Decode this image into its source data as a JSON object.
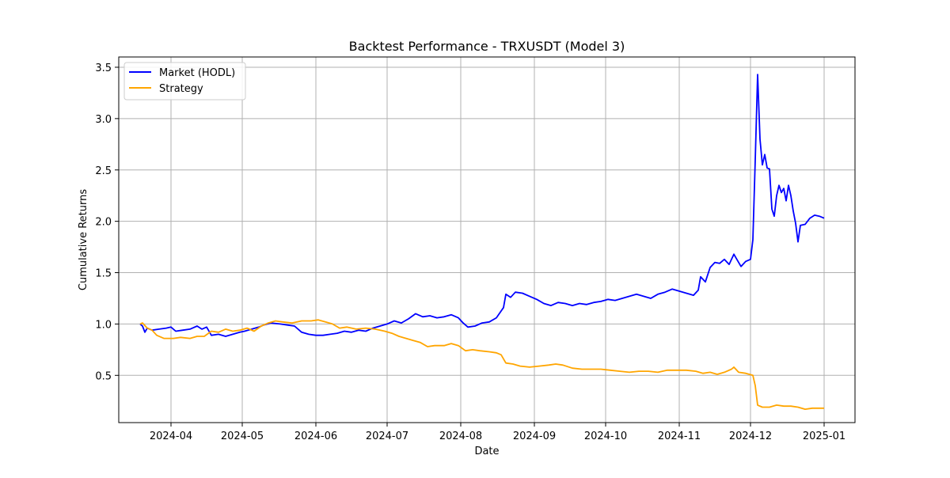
{
  "chart_data": {
    "type": "line",
    "title": "Backtest Performance - TRXUSDT (Model 3)",
    "xlabel": "Date",
    "ylabel": "Cumulative Returns",
    "xlim": [
      "2024-03-10",
      "2025-01-14"
    ],
    "ylim": [
      0.04,
      3.6
    ],
    "grid": true,
    "legend_position": "top-left",
    "x_ticks": [
      "2024-04",
      "2024-05",
      "2024-06",
      "2024-07",
      "2024-08",
      "2024-09",
      "2024-10",
      "2024-11",
      "2024-12",
      "2025-01"
    ],
    "y_ticks": [
      "0.5",
      "1.0",
      "1.5",
      "2.0",
      "2.5",
      "3.0",
      "3.5"
    ],
    "series": [
      {
        "name": "Market (HODL)",
        "color": "#0000ff",
        "points": [
          [
            "2024-03-19",
            1.0
          ],
          [
            "2024-03-20",
            0.98
          ],
          [
            "2024-03-21",
            0.92
          ],
          [
            "2024-03-22",
            0.96
          ],
          [
            "2024-03-24",
            0.94
          ],
          [
            "2024-03-27",
            0.95
          ],
          [
            "2024-03-30",
            0.96
          ],
          [
            "2024-04-01",
            0.97
          ],
          [
            "2024-04-03",
            0.93
          ],
          [
            "2024-04-06",
            0.94
          ],
          [
            "2024-04-09",
            0.95
          ],
          [
            "2024-04-12",
            0.98
          ],
          [
            "2024-04-14",
            0.95
          ],
          [
            "2024-04-16",
            0.97
          ],
          [
            "2024-04-18",
            0.89
          ],
          [
            "2024-04-21",
            0.9
          ],
          [
            "2024-04-24",
            0.88
          ],
          [
            "2024-04-27",
            0.9
          ],
          [
            "2024-04-30",
            0.92
          ],
          [
            "2024-05-02",
            0.93
          ],
          [
            "2024-05-05",
            0.95
          ],
          [
            "2024-05-08",
            0.97
          ],
          [
            "2024-05-10",
            0.99
          ],
          [
            "2024-05-13",
            1.01
          ],
          [
            "2024-05-17",
            1.0
          ],
          [
            "2024-05-20",
            0.99
          ],
          [
            "2024-05-23",
            0.98
          ],
          [
            "2024-05-26",
            0.92
          ],
          [
            "2024-05-29",
            0.9
          ],
          [
            "2024-06-01",
            0.89
          ],
          [
            "2024-06-04",
            0.89
          ],
          [
            "2024-06-07",
            0.9
          ],
          [
            "2024-06-10",
            0.91
          ],
          [
            "2024-06-13",
            0.93
          ],
          [
            "2024-06-16",
            0.92
          ],
          [
            "2024-06-19",
            0.94
          ],
          [
            "2024-06-22",
            0.93
          ],
          [
            "2024-06-25",
            0.96
          ],
          [
            "2024-06-28",
            0.98
          ],
          [
            "2024-07-01",
            1.0
          ],
          [
            "2024-07-04",
            1.03
          ],
          [
            "2024-07-07",
            1.01
          ],
          [
            "2024-07-10",
            1.05
          ],
          [
            "2024-07-13",
            1.1
          ],
          [
            "2024-07-16",
            1.07
          ],
          [
            "2024-07-19",
            1.08
          ],
          [
            "2024-07-22",
            1.06
          ],
          [
            "2024-07-25",
            1.07
          ],
          [
            "2024-07-28",
            1.09
          ],
          [
            "2024-07-31",
            1.06
          ],
          [
            "2024-08-02",
            1.01
          ],
          [
            "2024-08-04",
            0.97
          ],
          [
            "2024-08-07",
            0.98
          ],
          [
            "2024-08-10",
            1.01
          ],
          [
            "2024-08-13",
            1.02
          ],
          [
            "2024-08-16",
            1.06
          ],
          [
            "2024-08-19",
            1.16
          ],
          [
            "2024-08-20",
            1.29
          ],
          [
            "2024-08-22",
            1.26
          ],
          [
            "2024-08-24",
            1.31
          ],
          [
            "2024-08-27",
            1.3
          ],
          [
            "2024-08-30",
            1.27
          ],
          [
            "2024-09-02",
            1.24
          ],
          [
            "2024-09-05",
            1.2
          ],
          [
            "2024-09-08",
            1.18
          ],
          [
            "2024-09-11",
            1.21
          ],
          [
            "2024-09-14",
            1.2
          ],
          [
            "2024-09-17",
            1.18
          ],
          [
            "2024-09-20",
            1.2
          ],
          [
            "2024-09-23",
            1.19
          ],
          [
            "2024-09-26",
            1.21
          ],
          [
            "2024-09-29",
            1.22
          ],
          [
            "2024-10-02",
            1.24
          ],
          [
            "2024-10-05",
            1.23
          ],
          [
            "2024-10-08",
            1.25
          ],
          [
            "2024-10-11",
            1.27
          ],
          [
            "2024-10-14",
            1.29
          ],
          [
            "2024-10-17",
            1.27
          ],
          [
            "2024-10-20",
            1.25
          ],
          [
            "2024-10-23",
            1.29
          ],
          [
            "2024-10-26",
            1.31
          ],
          [
            "2024-10-29",
            1.34
          ],
          [
            "2024-11-01",
            1.32
          ],
          [
            "2024-11-04",
            1.3
          ],
          [
            "2024-11-07",
            1.28
          ],
          [
            "2024-11-09",
            1.33
          ],
          [
            "2024-11-10",
            1.46
          ],
          [
            "2024-11-12",
            1.41
          ],
          [
            "2024-11-14",
            1.55
          ],
          [
            "2024-11-16",
            1.6
          ],
          [
            "2024-11-18",
            1.59
          ],
          [
            "2024-11-20",
            1.63
          ],
          [
            "2024-11-22",
            1.58
          ],
          [
            "2024-11-24",
            1.68
          ],
          [
            "2024-11-25",
            1.64
          ],
          [
            "2024-11-27",
            1.56
          ],
          [
            "2024-11-29",
            1.61
          ],
          [
            "2024-12-01",
            1.63
          ],
          [
            "2024-12-02",
            1.82
          ],
          [
            "2024-12-03",
            2.6
          ],
          [
            "2024-12-04",
            3.43
          ],
          [
            "2024-12-05",
            2.8
          ],
          [
            "2024-12-06",
            2.55
          ],
          [
            "2024-12-07",
            2.65
          ],
          [
            "2024-12-08",
            2.52
          ],
          [
            "2024-12-09",
            2.51
          ],
          [
            "2024-12-10",
            2.12
          ],
          [
            "2024-12-11",
            2.05
          ],
          [
            "2024-12-12",
            2.25
          ],
          [
            "2024-12-13",
            2.35
          ],
          [
            "2024-12-14",
            2.28
          ],
          [
            "2024-12-15",
            2.32
          ],
          [
            "2024-12-16",
            2.2
          ],
          [
            "2024-12-17",
            2.35
          ],
          [
            "2024-12-18",
            2.25
          ],
          [
            "2024-12-19",
            2.1
          ],
          [
            "2024-12-20",
            1.98
          ],
          [
            "2024-12-21",
            1.8
          ],
          [
            "2024-12-22",
            1.96
          ],
          [
            "2024-12-24",
            1.97
          ],
          [
            "2024-12-26",
            2.03
          ],
          [
            "2024-12-28",
            2.06
          ],
          [
            "2024-12-30",
            2.05
          ],
          [
            "2025-01-01",
            2.03
          ]
        ]
      },
      {
        "name": "Strategy",
        "color": "#ffa500",
        "points": [
          [
            "2024-03-19",
            1.0
          ],
          [
            "2024-03-20",
            1.01
          ],
          [
            "2024-03-22",
            0.96
          ],
          [
            "2024-03-24",
            0.94
          ],
          [
            "2024-03-26",
            0.89
          ],
          [
            "2024-03-29",
            0.86
          ],
          [
            "2024-04-02",
            0.86
          ],
          [
            "2024-04-05",
            0.87
          ],
          [
            "2024-04-09",
            0.86
          ],
          [
            "2024-04-12",
            0.88
          ],
          [
            "2024-04-15",
            0.88
          ],
          [
            "2024-04-18",
            0.93
          ],
          [
            "2024-04-21",
            0.92
          ],
          [
            "2024-04-24",
            0.95
          ],
          [
            "2024-04-27",
            0.93
          ],
          [
            "2024-04-30",
            0.94
          ],
          [
            "2024-05-03",
            0.96
          ],
          [
            "2024-05-06",
            0.93
          ],
          [
            "2024-05-09",
            0.98
          ],
          [
            "2024-05-12",
            1.01
          ],
          [
            "2024-05-15",
            1.03
          ],
          [
            "2024-05-18",
            1.02
          ],
          [
            "2024-05-22",
            1.01
          ],
          [
            "2024-05-26",
            1.03
          ],
          [
            "2024-05-30",
            1.03
          ],
          [
            "2024-06-02",
            1.04
          ],
          [
            "2024-06-05",
            1.02
          ],
          [
            "2024-06-08",
            1.0
          ],
          [
            "2024-06-11",
            0.96
          ],
          [
            "2024-06-14",
            0.97
          ],
          [
            "2024-06-18",
            0.95
          ],
          [
            "2024-06-22",
            0.96
          ],
          [
            "2024-06-26",
            0.95
          ],
          [
            "2024-06-30",
            0.93
          ],
          [
            "2024-07-03",
            0.91
          ],
          [
            "2024-07-06",
            0.88
          ],
          [
            "2024-07-09",
            0.86
          ],
          [
            "2024-07-12",
            0.84
          ],
          [
            "2024-07-15",
            0.82
          ],
          [
            "2024-07-18",
            0.78
          ],
          [
            "2024-07-21",
            0.79
          ],
          [
            "2024-07-25",
            0.79
          ],
          [
            "2024-07-28",
            0.81
          ],
          [
            "2024-07-31",
            0.79
          ],
          [
            "2024-08-03",
            0.74
          ],
          [
            "2024-08-06",
            0.75
          ],
          [
            "2024-08-09",
            0.74
          ],
          [
            "2024-08-13",
            0.73
          ],
          [
            "2024-08-16",
            0.72
          ],
          [
            "2024-08-18",
            0.7
          ],
          [
            "2024-08-20",
            0.62
          ],
          [
            "2024-08-23",
            0.61
          ],
          [
            "2024-08-26",
            0.59
          ],
          [
            "2024-08-30",
            0.58
          ],
          [
            "2024-09-03",
            0.59
          ],
          [
            "2024-09-07",
            0.6
          ],
          [
            "2024-09-10",
            0.61
          ],
          [
            "2024-09-13",
            0.6
          ],
          [
            "2024-09-17",
            0.57
          ],
          [
            "2024-09-21",
            0.56
          ],
          [
            "2024-09-25",
            0.56
          ],
          [
            "2024-09-29",
            0.56
          ],
          [
            "2024-10-03",
            0.55
          ],
          [
            "2024-10-07",
            0.54
          ],
          [
            "2024-10-11",
            0.53
          ],
          [
            "2024-10-15",
            0.54
          ],
          [
            "2024-10-19",
            0.54
          ],
          [
            "2024-10-23",
            0.53
          ],
          [
            "2024-10-27",
            0.55
          ],
          [
            "2024-10-31",
            0.55
          ],
          [
            "2024-11-04",
            0.55
          ],
          [
            "2024-11-08",
            0.54
          ],
          [
            "2024-11-11",
            0.52
          ],
          [
            "2024-11-14",
            0.53
          ],
          [
            "2024-11-17",
            0.51
          ],
          [
            "2024-11-20",
            0.53
          ],
          [
            "2024-11-23",
            0.56
          ],
          [
            "2024-11-24",
            0.58
          ],
          [
            "2024-11-26",
            0.53
          ],
          [
            "2024-11-29",
            0.52
          ],
          [
            "2024-12-02",
            0.5
          ],
          [
            "2024-12-03",
            0.4
          ],
          [
            "2024-12-04",
            0.21
          ],
          [
            "2024-12-06",
            0.19
          ],
          [
            "2024-12-09",
            0.19
          ],
          [
            "2024-12-12",
            0.21
          ],
          [
            "2024-12-15",
            0.2
          ],
          [
            "2024-12-18",
            0.2
          ],
          [
            "2024-12-21",
            0.19
          ],
          [
            "2024-12-24",
            0.17
          ],
          [
            "2024-12-27",
            0.18
          ],
          [
            "2024-12-30",
            0.18
          ],
          [
            "2025-01-01",
            0.18
          ]
        ]
      }
    ]
  }
}
